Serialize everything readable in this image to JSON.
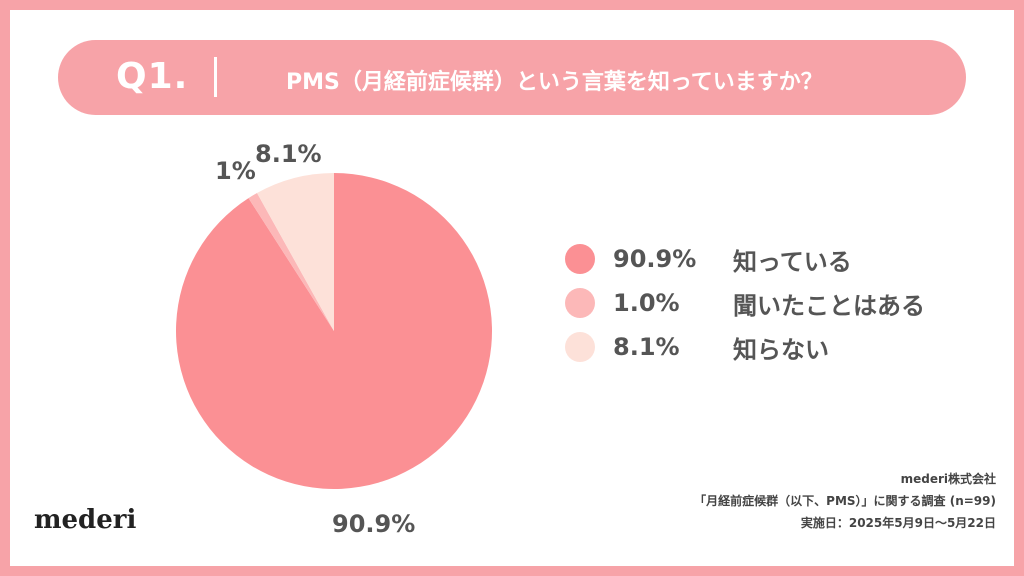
{
  "question": {
    "number": "Q1.",
    "text": "PMS（月経前症候群）という言葉を知っていますか？"
  },
  "chart_data": {
    "type": "pie",
    "slices": [
      {
        "label": "知っている",
        "value": 90.9,
        "legend_value": "90.9%",
        "slice_label": "90.9%",
        "color": "#fb9094"
      },
      {
        "label": "聞いたことはある",
        "value": 1.0,
        "legend_value": "1.0%",
        "slice_label": "1%",
        "color": "#fcb8b8"
      },
      {
        "label": "知らない",
        "value": 8.1,
        "legend_value": "8.1%",
        "slice_label": "8.1%",
        "color": "#fde1d9"
      }
    ],
    "legend_position": "right"
  },
  "brand": {
    "logo": "mederi"
  },
  "footer": {
    "company": "mederi株式会社",
    "survey": "「月経前症候群（以下、PMS）」に関する調査 (n=99)",
    "period": "実施日：2025年5月9日〜5月22日"
  },
  "colors": {
    "frame": "#f7a3a8",
    "text": "#555555"
  }
}
